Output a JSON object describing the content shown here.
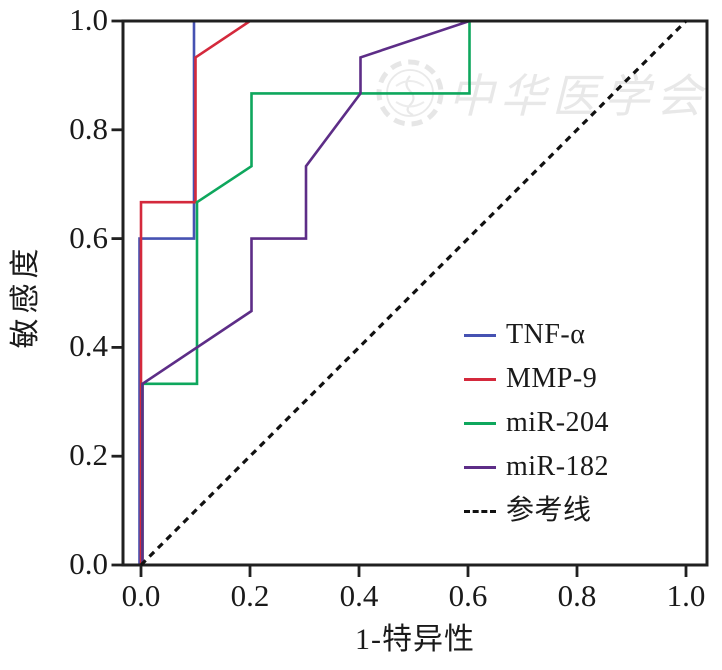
{
  "figure": {
    "watermark_text": "中华医学会"
  },
  "chart_data": {
    "type": "line",
    "subtype": "roc-curves",
    "title": "",
    "xlabel": "1-特异性",
    "ylabel": "敏感度",
    "xlim": [
      0.0,
      1.0
    ],
    "ylim": [
      0.0,
      1.0
    ],
    "xticks": [
      "0.0",
      "0.2",
      "0.4",
      "0.6",
      "0.8",
      "1.0"
    ],
    "yticks": [
      "0.0",
      "0.2",
      "0.4",
      "0.6",
      "0.8",
      "1.0"
    ],
    "grid": false,
    "legend_position": "inside middle-right",
    "axis_color": "#202020",
    "reference_line_color": "#111111",
    "series": [
      {
        "name": "TNF-α",
        "color": "#4652b2",
        "style": "solid",
        "points": [
          [
            0,
            0
          ],
          [
            0,
            0.6
          ],
          [
            0.1,
            0.6
          ],
          [
            0.1,
            1.0
          ],
          [
            1.0,
            1.0
          ]
        ]
      },
      {
        "name": "MMP-9",
        "color": "#d4293c",
        "style": "solid",
        "points": [
          [
            0,
            0
          ],
          [
            0,
            0.667
          ],
          [
            0.1,
            0.667
          ],
          [
            0.1,
            0.933
          ],
          [
            0.2,
            1.0
          ],
          [
            1.0,
            1.0
          ]
        ]
      },
      {
        "name": "miR-204",
        "color": "#0ea75d",
        "style": "solid",
        "points": [
          [
            0,
            0
          ],
          [
            0,
            0.333
          ],
          [
            0.1,
            0.333
          ],
          [
            0.1,
            0.667
          ],
          [
            0.2,
            0.733
          ],
          [
            0.2,
            0.867
          ],
          [
            0.6,
            0.867
          ],
          [
            0.6,
            1.0
          ],
          [
            1.0,
            1.0
          ]
        ]
      },
      {
        "name": "miR-182",
        "color": "#5d2d87",
        "style": "solid",
        "points": [
          [
            0,
            0
          ],
          [
            0,
            0.333
          ],
          [
            0.2,
            0.467
          ],
          [
            0.2,
            0.6
          ],
          [
            0.3,
            0.6
          ],
          [
            0.3,
            0.733
          ],
          [
            0.4,
            0.867
          ],
          [
            0.4,
            0.933
          ],
          [
            0.6,
            1.0
          ],
          [
            1.0,
            1.0
          ]
        ]
      },
      {
        "name": "参考线",
        "color": "#111111",
        "style": "dashed",
        "points": [
          [
            0,
            0
          ],
          [
            1.0,
            1.0
          ]
        ]
      }
    ]
  }
}
